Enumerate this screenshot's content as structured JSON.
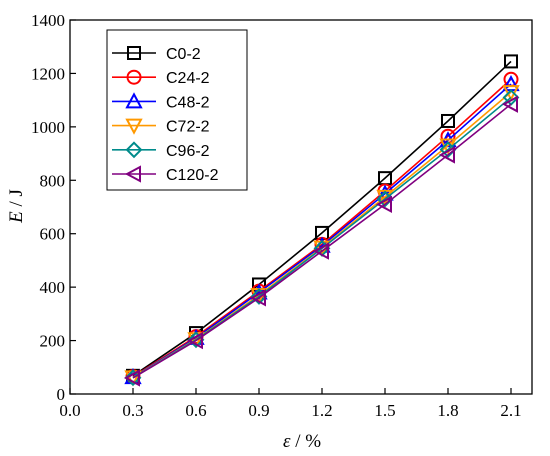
{
  "chart_data": {
    "type": "line",
    "x": [
      0.3,
      0.6,
      0.9,
      1.2,
      1.5,
      1.8,
      2.1
    ],
    "xlabel_symbol": "ε",
    "xlabel_unit": " / %",
    "ylabel_symbol": "E",
    "ylabel_unit": " / J",
    "xlim": [
      0.0,
      2.2
    ],
    "ylim": [
      0,
      1400
    ],
    "xticks": [
      0.0,
      0.3,
      0.6,
      0.9,
      1.2,
      1.5,
      1.8,
      2.1
    ],
    "xtick_labels": [
      "0.0",
      "0.3",
      "0.6",
      "0.9",
      "1.2",
      "1.5",
      "1.8",
      "2.1"
    ],
    "yticks": [
      0,
      200,
      400,
      600,
      800,
      1000,
      1200,
      1400
    ],
    "ytick_labels": [
      "0",
      "200",
      "400",
      "600",
      "800",
      "1000",
      "1200",
      "1400"
    ],
    "grid": false,
    "legend_position": "top-left",
    "series": [
      {
        "name": "C0-2",
        "color": "#000000",
        "marker": "square",
        "values": [
          68,
          228,
          410,
          603,
          808,
          1022,
          1245
        ]
      },
      {
        "name": "C24-2",
        "color": "#ff0000",
        "marker": "circle",
        "values": [
          65,
          215,
          385,
          560,
          760,
          965,
          1178
        ]
      },
      {
        "name": "C48-2",
        "color": "#0000ff",
        "marker": "triangle-up",
        "values": [
          63,
          210,
          380,
          555,
          750,
          950,
          1160
        ]
      },
      {
        "name": "C72-2",
        "color": "#ff9900",
        "marker": "triangle-down",
        "values": [
          62,
          205,
          370,
          548,
          738,
          930,
          1130
        ]
      },
      {
        "name": "C96-2",
        "color": "#008b8b",
        "marker": "diamond",
        "values": [
          61,
          203,
          365,
          545,
          730,
          915,
          1110
        ]
      },
      {
        "name": "C120-2",
        "color": "#800080",
        "marker": "triangle-left",
        "values": [
          60,
          200,
          360,
          535,
          710,
          895,
          1085
        ]
      }
    ]
  }
}
